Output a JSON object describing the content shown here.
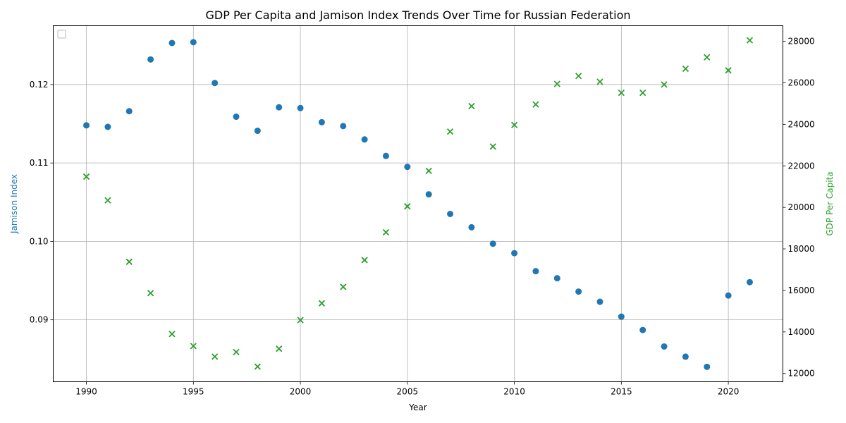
{
  "chart_data": {
    "type": "scatter",
    "title": "GDP Per Capita and Jamison Index Trends Over Time for Russian Federation",
    "xlabel": "Year",
    "ylabel": "Jamison Index",
    "ylabel_right": "GDP Per Capita",
    "xlim": [
      1988.45,
      2022.55
    ],
    "ylim_left": [
      0.0821,
      0.1275
    ],
    "ylim_right": [
      11600,
      28750
    ],
    "x_ticks": [
      1990,
      1995,
      2000,
      2005,
      2010,
      2015,
      2020
    ],
    "y_ticks_left": [
      0.09,
      0.1,
      0.11,
      0.12
    ],
    "y_tick_labels_left": [
      "0.09",
      "0.10",
      "0.11",
      "0.12"
    ],
    "y_ticks_right": [
      12000,
      14000,
      16000,
      18000,
      20000,
      22000,
      24000,
      26000,
      28000
    ],
    "grid": true,
    "legend": "top-left (empty)",
    "x": [
      1990,
      1991,
      1992,
      1993,
      1994,
      1995,
      1996,
      1997,
      1998,
      1999,
      2000,
      2001,
      2002,
      2003,
      2004,
      2005,
      2006,
      2007,
      2008,
      2009,
      2010,
      2011,
      2012,
      2013,
      2014,
      2015,
      2016,
      2017,
      2018,
      2019,
      2020,
      2021
    ],
    "series": [
      {
        "axis": "left",
        "marker": "circle",
        "color": "#1f77b4",
        "values": [
          0.1148,
          0.1146,
          0.1166,
          0.1232,
          0.1253,
          0.1254,
          0.1202,
          0.1159,
          0.1141,
          0.1171,
          0.117,
          0.1152,
          0.1147,
          0.113,
          0.1109,
          0.1095,
          0.106,
          0.1035,
          0.1018,
          0.0997,
          0.0985,
          0.0962,
          0.0953,
          0.0936,
          0.0923,
          0.0904,
          0.0887,
          0.0866,
          0.0853,
          0.084,
          0.0931,
          0.0948
        ]
      },
      {
        "axis": "right",
        "marker": "x",
        "color": "#2ca02c",
        "values": [
          21480,
          20340,
          17380,
          15870,
          13900,
          13320,
          12810,
          13030,
          12330,
          13190,
          14570,
          15380,
          16170,
          17460,
          18800,
          20050,
          21760,
          23650,
          24880,
          22930,
          23970,
          24960,
          25950,
          26330,
          26050,
          25520,
          25520,
          25920,
          26680,
          27230,
          26600,
          28050
        ]
      }
    ]
  }
}
